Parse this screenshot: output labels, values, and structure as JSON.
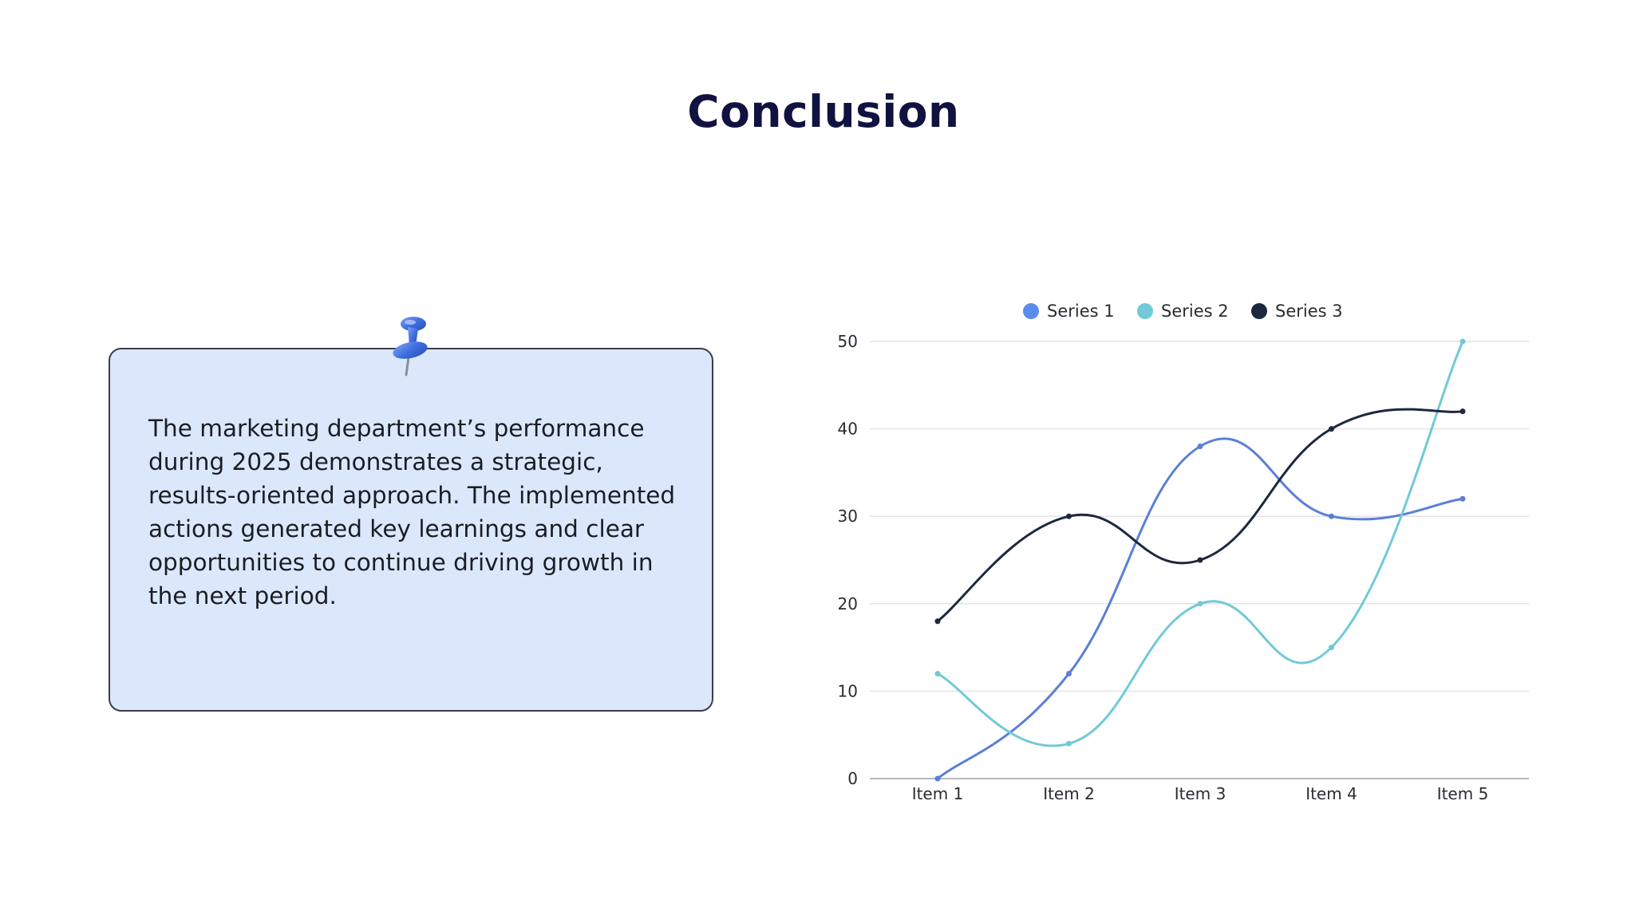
{
  "slide": {
    "title": "Conclusion",
    "body_text": "The marketing department’s performance during 2025 demonstrates a strategic, results-oriented approach. The implemented actions generated key learnings and clear opportunities to continue driving growth in the next period."
  },
  "colors": {
    "title": "#10123f",
    "card_background": "#dbe8fb",
    "pin": "#3f6ee0"
  },
  "icons": {
    "pushpin": "pushpin-icon"
  },
  "chart_data": {
    "type": "line",
    "categories": [
      "Item 1",
      "Item 2",
      "Item 3",
      "Item 4",
      "Item 5"
    ],
    "series": [
      {
        "name": "Series 1",
        "values": [
          0,
          12,
          38,
          30,
          32
        ],
        "color": "#5b7fd6",
        "legend_color": "#5b8def"
      },
      {
        "name": "Series 2",
        "values": [
          12,
          4,
          20,
          15,
          50
        ],
        "color": "#72c9d8",
        "legend_color": "#72c9d8"
      },
      {
        "name": "Series 3",
        "values": [
          18,
          30,
          25,
          40,
          42
        ],
        "color": "#1d2740",
        "legend_color": "#1d2740"
      }
    ],
    "ylim": [
      0,
      50
    ],
    "yticks": [
      0,
      10,
      20,
      30,
      40,
      50
    ],
    "grid": true,
    "smooth": true,
    "legend_position": "top-center",
    "title": "",
    "xlabel": "",
    "ylabel": ""
  }
}
